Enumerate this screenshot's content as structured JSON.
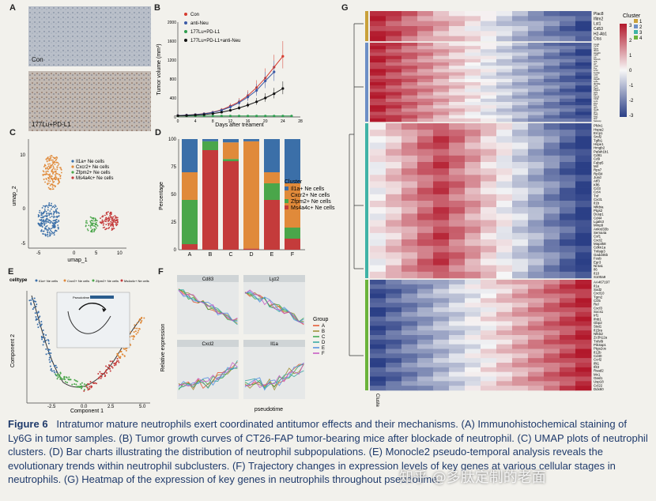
{
  "panels": {
    "A": "A",
    "B": "B",
    "C": "C",
    "D": "D",
    "E": "E",
    "F": "F",
    "G": "G"
  },
  "panelA": {
    "con_label": "Con",
    "treat_label": "177Lu+PD-L1"
  },
  "panelB": {
    "ylabel": "Tumor volume (mm³)",
    "xlabel": "Days after treament",
    "legend": [
      "Con",
      "anti-Neu",
      "177Lu+PD-L1",
      "177Lu+PD-L1+anti-Neu"
    ],
    "colors": [
      "#d63b2f",
      "#3b5aa6",
      "#2e9e4f",
      "#111111"
    ]
  },
  "panelC": {
    "xlabel": "umap_1",
    "ylabel": "umap_2",
    "legend": [
      "Il1a+ Ne cells",
      "Cxcr2+ Ne cells",
      "Zfpm2+ Ne cells",
      "Ms4a4c+ Ne cells"
    ],
    "colors": [
      "#3b6fa8",
      "#e08a3a",
      "#4aa64a",
      "#c43b3b"
    ]
  },
  "panelD": {
    "ylabel": "Percentage",
    "legend_title": "Cluster",
    "legend": [
      "Il1a+ Ne cells",
      "Cxcr2+ Ne cells",
      "Zfpm2+ Ne cells",
      "Ms4a4c+ Ne cells"
    ]
  },
  "panelE": {
    "xlabel": "Component 1",
    "ylabel": "Component 2",
    "legend_title": "celltype",
    "legend": [
      "Il1a+ Ne cells",
      "Cxcr2+ Ne cells",
      "Zfpm2+ Ne cells",
      "Ms4a4c+ Ne cells"
    ],
    "inset_label": "Pseudotime"
  },
  "panelF": {
    "ylabel": "Relative expression",
    "xlabel": "pseudotime",
    "genes": [
      "Cd83",
      "Lyz2",
      "Cxcl2",
      "Il1a"
    ],
    "legend_title": "Group",
    "groups": [
      "A",
      "B",
      "C",
      "D",
      "E",
      "F"
    ],
    "group_colors": [
      "#e4552f",
      "#9b8a2e",
      "#39a84a",
      "#2fa6a0",
      "#4f8de0",
      "#c554c2"
    ]
  },
  "panelG": {
    "legend_title": "Cluster",
    "legend": [
      "1",
      "2",
      "3",
      "4"
    ],
    "cluster_colors": [
      "#c9a13a",
      "#6d8fc6",
      "#3fb3a6",
      "#6bb33a"
    ],
    "scale": [
      "3",
      "2",
      "1",
      "0",
      "-1",
      "-2",
      "-3"
    ],
    "side_label": "Cluste",
    "genes1": [
      "Plac8",
      "Ifitm2",
      "Lst1",
      "Cd53",
      "H2-Ab1",
      "Ctss"
    ],
    "genes2": [
      "Ccnd1",
      "Cd74",
      "Apoe",
      "Ifitm3",
      "Hspa1b",
      "Cd47",
      "Ltb",
      "Gpnmb",
      "Ier5",
      "Irf7",
      "Ctsd",
      "Fos",
      "Lcn2",
      "Tyrobp",
      "Ctsb",
      "Junb",
      "Hspa8",
      "Ly6e",
      "Ifi27l2a",
      "Ccl6",
      "Rgs2",
      "Ptger4",
      "Spi1",
      "Egr1",
      "Socs3",
      "Cd14",
      "Lyz1",
      "Fth1",
      "Ftl1",
      "Ifi47",
      "Isg15",
      "Vim",
      "Rpl9",
      "Nrp1",
      "Ier2",
      "Selenop"
    ],
    "genes3": [
      "Pfdn1",
      "Hspa2",
      "Ercp1",
      "Srsf2",
      "Tgfb1",
      "Hspe1",
      "Hmgb2",
      "Pafah1b1",
      "Cd81",
      "Cd9",
      "Fabp5",
      "Mif",
      "Rps7",
      "Rpl34",
      "Jund",
      "Atf3",
      "Klf6",
      "Ccl3",
      "Ccl4",
      "Tnf",
      "Cxcl1",
      "Il1b",
      "Nfkbia",
      "Ptgs2",
      "Dusp1",
      "Cd44",
      "Lgals3",
      "Mmp9",
      "Ankrd33b",
      "Sema4a",
      "Csf1",
      "Cxcl2",
      "Map3k8",
      "Cdkn1a",
      "Tnfaip3",
      "Gadd45b",
      "Fosb",
      "Egr3",
      "Nr4a1",
      "Il6",
      "Il10",
      "S100a9"
    ],
    "genes4": [
      "AA467197",
      "Il1a",
      "Sod2",
      "Cxcl10",
      "Tgm2",
      "Ccl5",
      "Rel",
      "Cxcl3",
      "Socs1",
      "Irf1",
      "Ifnb1",
      "Gbp2",
      "Stat1",
      "Il15ra",
      "Nfkbiz",
      "Zc3h12a",
      "Tnfsf9",
      "Pik3ap1",
      "Ptgs2os",
      "Il12b",
      "Cd40",
      "Ccrl2",
      "Ifit1",
      "Ifit3",
      "Rsad2",
      "Mx1",
      "Oasl1",
      "Usp18",
      "Ccl22",
      "Ddx60"
    ]
  },
  "caption": {
    "figure": "Figure 6",
    "text": "Intratumor mature neutrophils exert coordinated antitumor effects and their mechanisms. (A) Immunohistochemical staining of Ly6G in tumor samples. (B) Tumor growth curves of CT26-FAP tumor-bearing mice after blockade of neutrophil. (C) UMAP plots of neutrophil clusters. (D) Bar charts illustrating the distribution of neutrophil subpopulations. (E) Monocle2 pseudo-temporal analysis reveals the evolutionary trends within neutrophil subclusters. (F) Trajectory changes in expression levels of key genes at various cellular stages in neutrophils. (G) Heatmap of the expression of key genes in neutrophils throughout pseudotime."
  },
  "watermark": "知乎 @多肽定制的老面",
  "chart_data": [
    {
      "type": "line",
      "title": "",
      "xlabel": "Days after treament",
      "ylabel": "Tumor volume (mm³)",
      "x": [
        0,
        2,
        4,
        6,
        8,
        10,
        12,
        14,
        16,
        18,
        20,
        22,
        24,
        26
      ],
      "xlim": [
        0,
        28
      ],
      "ylim": [
        0,
        2000
      ],
      "series": [
        {
          "name": "Con",
          "values": [
            30,
            40,
            50,
            70,
            100,
            150,
            230,
            320,
            450,
            620,
            820,
            1050,
            1280,
            null
          ]
        },
        {
          "name": "anti-Neu",
          "values": [
            30,
            38,
            48,
            65,
            95,
            140,
            210,
            300,
            420,
            560,
            760,
            950,
            null,
            null
          ]
        },
        {
          "name": "177Lu+PD-L1",
          "values": [
            20,
            20,
            20,
            20,
            20,
            20,
            20,
            20,
            20,
            20,
            20,
            20,
            20,
            20
          ]
        },
        {
          "name": "177Lu+PD-L1+anti-Neu",
          "values": [
            25,
            30,
            40,
            50,
            70,
            100,
            140,
            190,
            250,
            320,
            400,
            490,
            600,
            null
          ]
        }
      ]
    },
    {
      "type": "bar",
      "title": "",
      "ylabel": "Percentage",
      "categories": [
        "A",
        "B",
        "C",
        "D",
        "E",
        "F"
      ],
      "ylim": [
        0,
        100
      ],
      "series": [
        {
          "name": "Il1a+ Ne cells",
          "values": [
            30,
            2,
            3,
            2,
            30,
            40
          ]
        },
        {
          "name": "Cxcr2+ Ne cells",
          "values": [
            25,
            0,
            15,
            97,
            10,
            40
          ]
        },
        {
          "name": "Zfpm2+ Ne cells",
          "values": [
            40,
            8,
            2,
            0,
            15,
            10
          ]
        },
        {
          "name": "Ms4a4c+ Ne cells",
          "values": [
            5,
            90,
            80,
            1,
            45,
            10
          ]
        }
      ]
    }
  ]
}
